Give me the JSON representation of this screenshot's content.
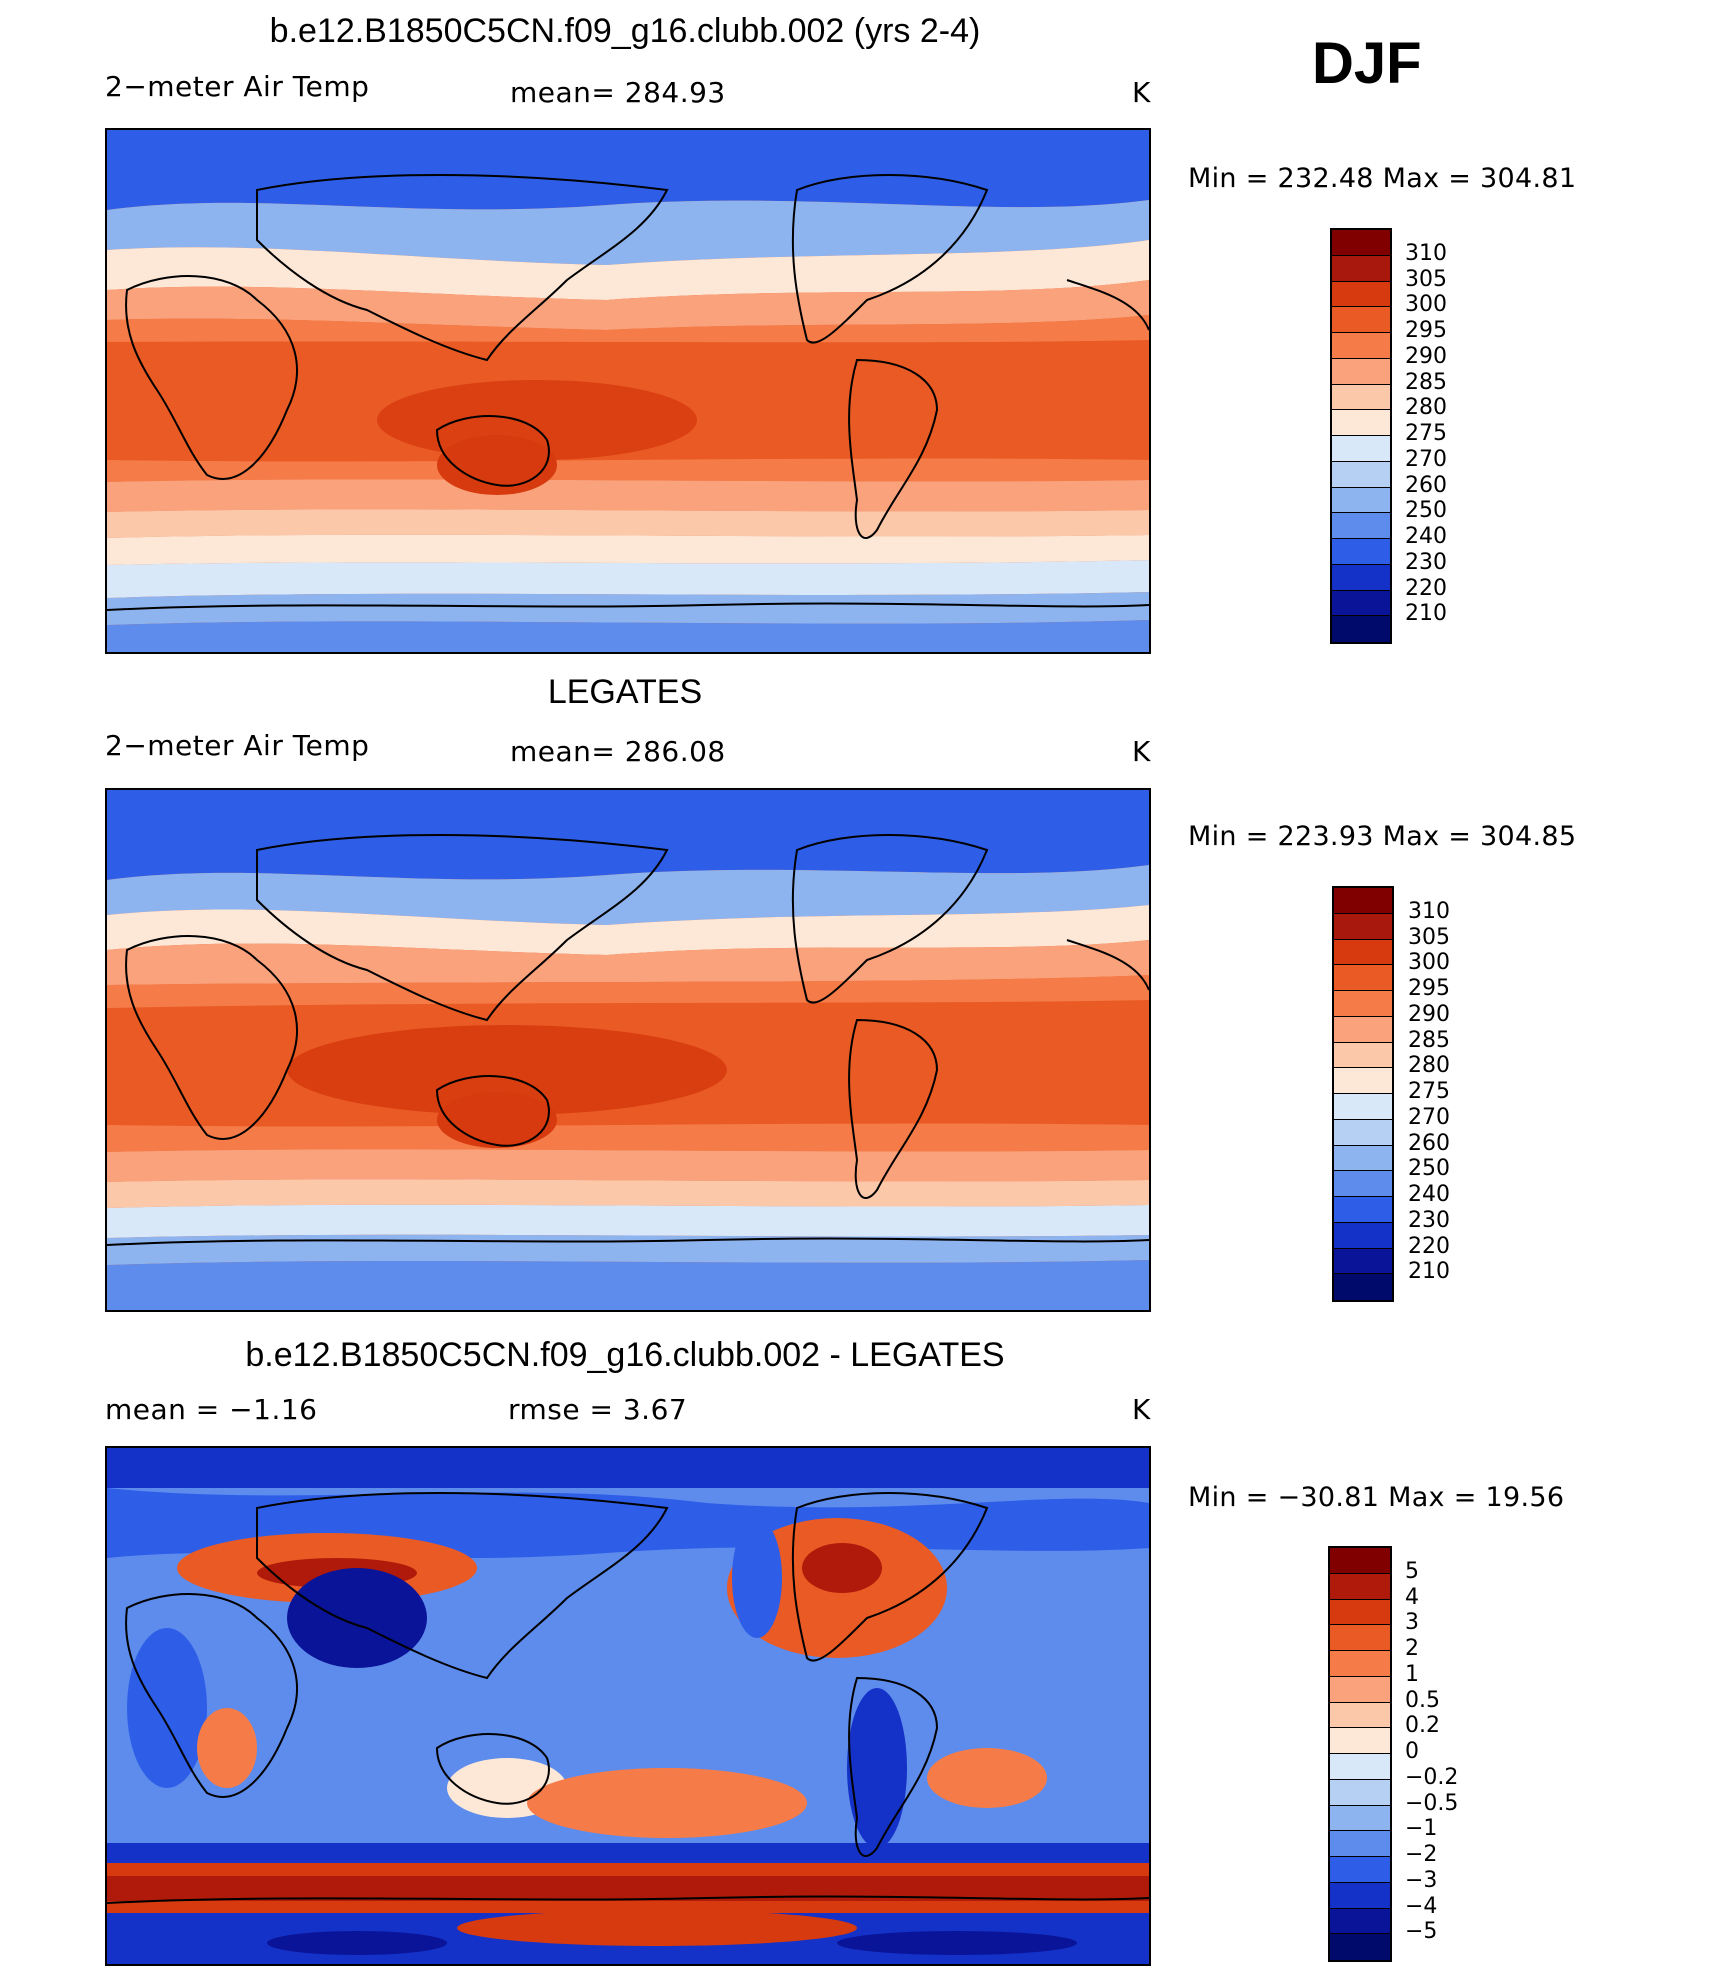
{
  "season": "DJF",
  "units": "K",
  "panels": [
    {
      "title": "b.e12.B1850C5CN.f09_g16.clubb.002 (yrs 2-4)",
      "left_label": "2−meter Air Temp",
      "center_label": "mean= 284.93",
      "right_label": "K",
      "minmax": "Min = 232.48 Max = 304.81",
      "colorbar_labels": [
        "310",
        "305",
        "300",
        "295",
        "290",
        "285",
        "280",
        "275",
        "270",
        "260",
        "250",
        "240",
        "230",
        "220",
        "210"
      ]
    },
    {
      "title": "LEGATES",
      "left_label": "2−meter Air Temp",
      "center_label": "mean= 286.08",
      "right_label": "K",
      "minmax": "Min = 223.93 Max = 304.85",
      "colorbar_labels": [
        "310",
        "305",
        "300",
        "295",
        "290",
        "285",
        "280",
        "275",
        "270",
        "260",
        "250",
        "240",
        "230",
        "220",
        "210"
      ]
    },
    {
      "title": "b.e12.B1850C5CN.f09_g16.clubb.002 - LEGATES",
      "left_label": "mean =   −1.16",
      "center_label": "rmse =    3.67",
      "right_label": "K",
      "minmax": "Min = −30.81 Max =  19.56",
      "colorbar_labels": [
        "5",
        "4",
        "3",
        "2",
        "1",
        "0.5",
        "0.2",
        "0",
        "−0.2",
        "−0.5",
        "−1",
        "−2",
        "−3",
        "−4",
        "−5"
      ]
    }
  ],
  "colors": {
    "temp_scale": [
      "#800000",
      "#a8180c",
      "#d63a0e",
      "#ea5a24",
      "#f57c48",
      "#f9a27c",
      "#fcc8aa",
      "#fde8d8",
      "#d8e8f8",
      "#b6d0f4",
      "#8eb4f0",
      "#5e8cec",
      "#2e5ee8",
      "#1432c8",
      "#0a1498",
      "#000a6a"
    ],
    "diff_scale": [
      "#800000",
      "#b01a0a",
      "#d63a0e",
      "#ea5a24",
      "#f57c48",
      "#f9a27c",
      "#fcc8aa",
      "#fde8d8",
      "#d8e8f8",
      "#b6d0f4",
      "#8eb4f0",
      "#5e8cec",
      "#2e5ee8",
      "#1432c8",
      "#0a1498",
      "#000a6a"
    ]
  }
}
